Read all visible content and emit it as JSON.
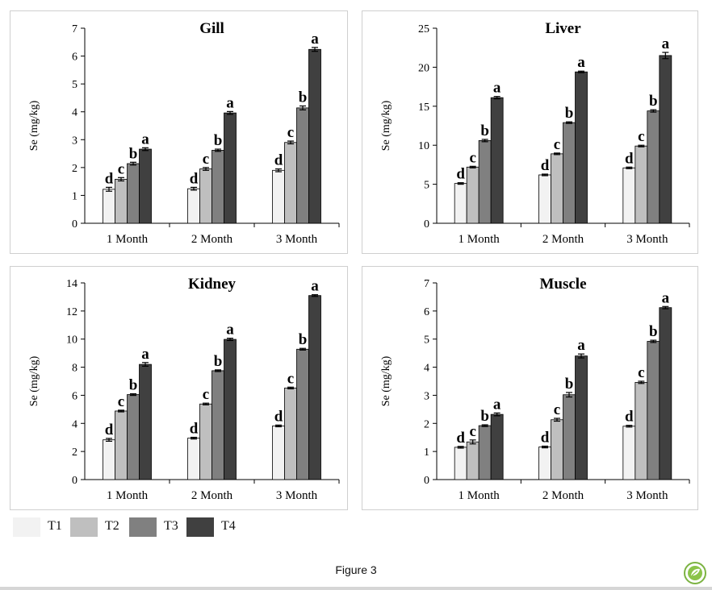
{
  "figure": {
    "caption": "Figure 3"
  },
  "colors": {
    "T1": "#f2f2f2",
    "T2": "#bfbfbf",
    "T3": "#808080",
    "T4": "#404040",
    "axis": "#000000",
    "frame": "#cfcfcf"
  },
  "legend": [
    {
      "label": "T1",
      "color": "#f2f2f2"
    },
    {
      "label": "T2",
      "color": "#bfbfbf"
    },
    {
      "label": "T3",
      "color": "#808080"
    },
    {
      "label": "T4",
      "color": "#404040"
    }
  ],
  "chart_data": [
    {
      "type": "bar",
      "title": "Gill",
      "ylabel": "Se (mg/kg)",
      "xlabel": "",
      "categories": [
        "1 Month",
        "2 Month",
        "3 Month"
      ],
      "ylim": [
        0,
        7
      ],
      "yticks": [
        0,
        1,
        2,
        3,
        4,
        5,
        6,
        7
      ],
      "series": [
        {
          "name": "T1",
          "values": [
            1.22,
            1.24,
            1.9
          ],
          "errors": [
            0.07,
            0.05,
            0.05
          ],
          "labels": [
            "d",
            "d",
            "d"
          ]
        },
        {
          "name": "T2",
          "values": [
            1.58,
            1.95,
            2.9
          ],
          "errors": [
            0.06,
            0.05,
            0.05
          ],
          "labels": [
            "c",
            "c",
            "c"
          ]
        },
        {
          "name": "T3",
          "values": [
            2.14,
            2.62,
            4.14
          ],
          "errors": [
            0.05,
            0.04,
            0.07
          ],
          "labels": [
            "b",
            "b",
            "b"
          ]
        },
        {
          "name": "T4",
          "values": [
            2.66,
            3.96,
            6.24
          ],
          "errors": [
            0.05,
            0.05,
            0.07
          ],
          "labels": [
            "a",
            "a",
            "a"
          ]
        }
      ],
      "grid": false,
      "legend": "bottom-left"
    },
    {
      "type": "bar",
      "title": "Liver",
      "ylabel": "Se (mg/kg)",
      "xlabel": "",
      "categories": [
        "1 Month",
        "2 Month",
        "3 Month"
      ],
      "ylim": [
        0,
        25
      ],
      "yticks": [
        0,
        5,
        10,
        15,
        20,
        25
      ],
      "series": [
        {
          "name": "T1",
          "values": [
            5.1,
            6.2,
            7.1
          ],
          "errors": [
            0.1,
            0.1,
            0.1
          ],
          "labels": [
            "d",
            "d",
            "d"
          ]
        },
        {
          "name": "T2",
          "values": [
            7.2,
            8.9,
            9.9
          ],
          "errors": [
            0.1,
            0.1,
            0.1
          ],
          "labels": [
            "c",
            "c",
            "c"
          ]
        },
        {
          "name": "T3",
          "values": [
            10.6,
            12.9,
            14.4
          ],
          "errors": [
            0.15,
            0.1,
            0.15
          ],
          "labels": [
            "b",
            "b",
            "b"
          ]
        },
        {
          "name": "T4",
          "values": [
            16.1,
            19.4,
            21.5
          ],
          "errors": [
            0.15,
            0.1,
            0.4
          ],
          "labels": [
            "a",
            "a",
            "a"
          ]
        }
      ],
      "grid": false,
      "legend": "bottom-left"
    },
    {
      "type": "bar",
      "title": "Kidney",
      "ylabel": "Se (mg/kg)",
      "xlabel": "",
      "categories": [
        "1 Month",
        "2 Month",
        "3 Month"
      ],
      "ylim": [
        0,
        14
      ],
      "yticks": [
        0,
        2,
        4,
        6,
        8,
        10,
        12,
        14
      ],
      "series": [
        {
          "name": "T1",
          "values": [
            2.83,
            2.95,
            3.82
          ],
          "errors": [
            0.1,
            0.06,
            0.06
          ],
          "labels": [
            "d",
            "d",
            "d"
          ]
        },
        {
          "name": "T2",
          "values": [
            4.88,
            5.38,
            6.52
          ],
          "errors": [
            0.06,
            0.06,
            0.06
          ],
          "labels": [
            "c",
            "c",
            "c"
          ]
        },
        {
          "name": "T3",
          "values": [
            6.05,
            7.75,
            9.28
          ],
          "errors": [
            0.06,
            0.06,
            0.06
          ],
          "labels": [
            "b",
            "b",
            "b"
          ]
        },
        {
          "name": "T4",
          "values": [
            8.2,
            9.98,
            13.1
          ],
          "errors": [
            0.13,
            0.08,
            0.06
          ],
          "labels": [
            "a",
            "a",
            "a"
          ]
        }
      ],
      "grid": false,
      "legend": "bottom-left"
    },
    {
      "type": "bar",
      "title": "Muscle",
      "ylabel": "Se (mg/kg)",
      "xlabel": "",
      "categories": [
        "1 Month",
        "2 Month",
        "3 Month"
      ],
      "ylim": [
        0,
        7
      ],
      "yticks": [
        0,
        1,
        2,
        3,
        4,
        5,
        6,
        7
      ],
      "series": [
        {
          "name": "T1",
          "values": [
            1.15,
            1.16,
            1.9
          ],
          "errors": [
            0.03,
            0.03,
            0.03
          ],
          "labels": [
            "d",
            "d",
            "d"
          ]
        },
        {
          "name": "T2",
          "values": [
            1.34,
            2.13,
            3.46
          ],
          "errors": [
            0.07,
            0.05,
            0.04
          ],
          "labels": [
            "c",
            "c",
            "c"
          ]
        },
        {
          "name": "T3",
          "values": [
            1.92,
            3.02,
            4.92
          ],
          "errors": [
            0.03,
            0.08,
            0.04
          ],
          "labels": [
            "b",
            "b",
            "b"
          ]
        },
        {
          "name": "T4",
          "values": [
            2.32,
            4.4,
            6.12
          ],
          "errors": [
            0.05,
            0.07,
            0.04
          ],
          "labels": [
            "a",
            "a",
            "a"
          ]
        }
      ],
      "grid": false,
      "legend": "bottom-left"
    }
  ]
}
